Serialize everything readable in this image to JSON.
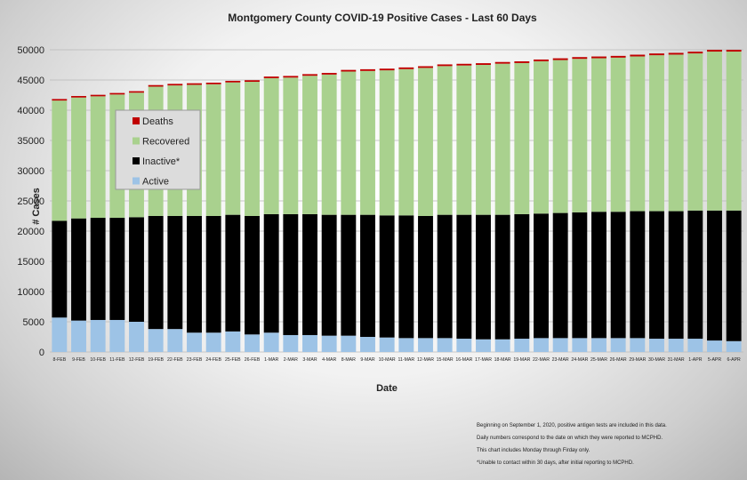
{
  "chart_data": {
    "type": "bar",
    "stacked": true,
    "title": "Montgomery County COVID-19 Positive Cases  - Last 60 Days",
    "xlabel": "Date",
    "ylabel": "# Cases",
    "ylim": [
      0,
      50000
    ],
    "yticks": [
      0,
      5000,
      10000,
      15000,
      20000,
      25000,
      30000,
      35000,
      40000,
      45000,
      50000
    ],
    "grid": true,
    "legend_placement": "upper-left",
    "categories": [
      "8-FEB",
      "9-FEB",
      "10-FEB",
      "11-FEB",
      "12-FEB",
      "19-FEB",
      "22-FEB",
      "23-FEB",
      "24-FEB",
      "25-FEB",
      "26-FEB",
      "1-MAR",
      "2-MAR",
      "3-MAR",
      "4-MAR",
      "8-MAR",
      "9-MAR",
      "10-MAR",
      "11-MAR",
      "12-MAR",
      "15-MAR",
      "16-MAR",
      "17-MAR",
      "18-MAR",
      "19-MAR",
      "22-MAR",
      "23-MAR",
      "24-MAR",
      "25-MAR",
      "26-MAR",
      "29-MAR",
      "30-MAR",
      "31-MAR",
      "1-APR",
      "5-APR",
      "6-APR"
    ],
    "series": [
      {
        "name": "Active",
        "color": "#9dc3e6",
        "values": [
          5700,
          5200,
          5300,
          5300,
          5000,
          3800,
          3800,
          3200,
          3200,
          3400,
          2900,
          3200,
          2800,
          2800,
          2700,
          2700,
          2500,
          2400,
          2300,
          2300,
          2300,
          2200,
          2100,
          2100,
          2200,
          2300,
          2300,
          2300,
          2300,
          2300,
          2300,
          2200,
          2200,
          2200,
          1900,
          1800
        ]
      },
      {
        "name": "Inactive*",
        "color": "#000000",
        "values": [
          16000,
          16900,
          16900,
          16900,
          17300,
          18700,
          18700,
          19300,
          19300,
          19300,
          19600,
          19600,
          20000,
          20000,
          20000,
          20000,
          20200,
          20200,
          20300,
          20200,
          20400,
          20500,
          20600,
          20600,
          20600,
          20600,
          20700,
          20800,
          20900,
          20900,
          21000,
          21100,
          21100,
          21200,
          21500,
          21600
        ]
      },
      {
        "name": "Recovered",
        "color": "#a9d18e",
        "values": [
          19900,
          20000,
          20100,
          20400,
          20600,
          21400,
          21600,
          21700,
          21800,
          21900,
          22200,
          22500,
          22600,
          22900,
          23200,
          23700,
          23800,
          24000,
          24200,
          24500,
          24600,
          24700,
          24800,
          25000,
          25000,
          25200,
          25300,
          25400,
          25400,
          25500,
          25600,
          25800,
          25900,
          26000,
          26300,
          26300
        ]
      },
      {
        "name": "Deaths",
        "color": "#c00000",
        "values": [
          250,
          250,
          250,
          250,
          250,
          260,
          260,
          260,
          260,
          260,
          260,
          270,
          270,
          270,
          270,
          270,
          280,
          280,
          280,
          280,
          280,
          280,
          280,
          280,
          290,
          290,
          290,
          290,
          290,
          290,
          290,
          290,
          290,
          290,
          300,
          300
        ]
      }
    ],
    "legend_order": [
      "Deaths",
      "Recovered",
      "Inactive*",
      "Active"
    ],
    "notes": [
      "Beginning on September 1, 2020, positive antigen tests are included in this data.",
      "Daily numbers correspond to the date on which they were reported to MCPHD.",
      "This chart includes Monday through Firday only.",
      "*Unable to contact within 30 days, after initial reporting to MCPHD."
    ]
  }
}
